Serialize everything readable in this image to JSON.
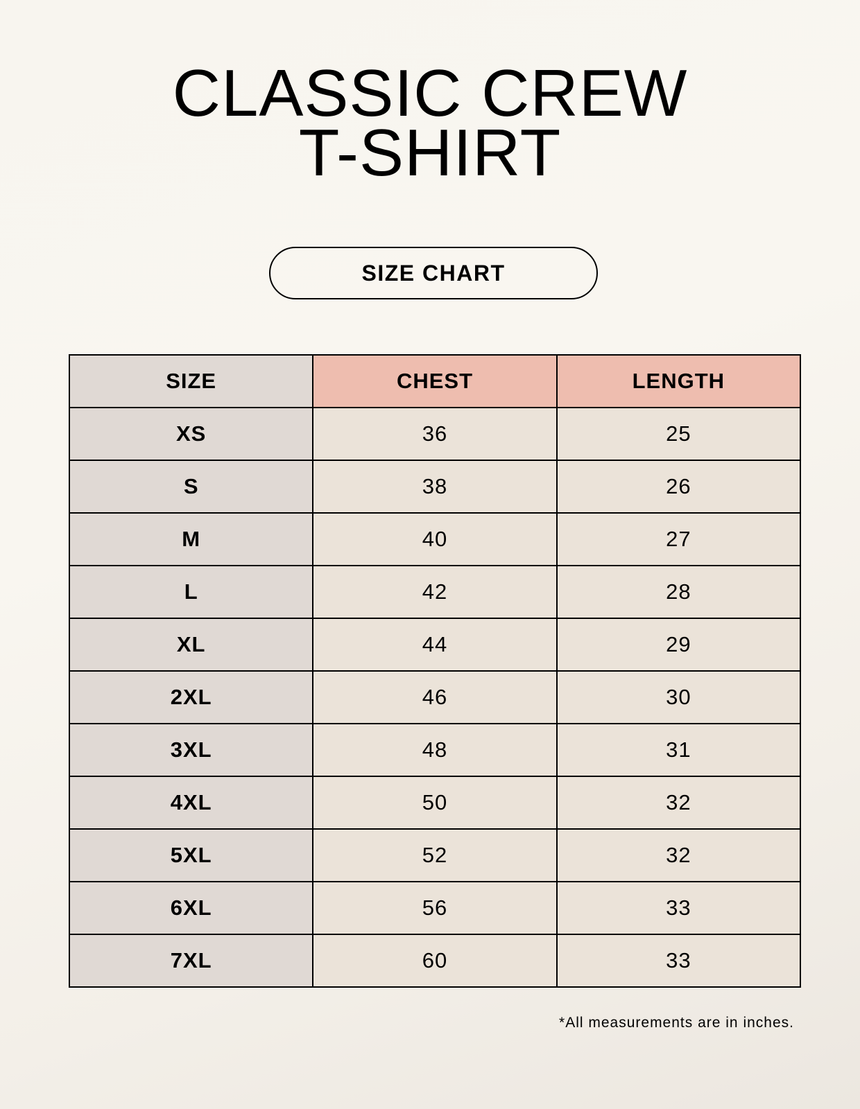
{
  "title": {
    "line1": "CLASSIC CREW",
    "line2": "T-SHIRT"
  },
  "subtitle": "SIZE CHART",
  "table": {
    "headers": [
      "SIZE",
      "CHEST",
      "LENGTH"
    ],
    "rows": [
      [
        "XS",
        "36",
        "25"
      ],
      [
        "S",
        "38",
        "26"
      ],
      [
        "M",
        "40",
        "27"
      ],
      [
        "L",
        "42",
        "28"
      ],
      [
        "XL",
        "44",
        "29"
      ],
      [
        "2XL",
        "46",
        "30"
      ],
      [
        "3XL",
        "48",
        "31"
      ],
      [
        "4XL",
        "50",
        "32"
      ],
      [
        "5XL",
        "52",
        "32"
      ],
      [
        "6XL",
        "56",
        "33"
      ],
      [
        "7XL",
        "60",
        "33"
      ]
    ]
  },
  "footnote": "*All measurements are in inches.",
  "colors": {
    "header_accent": "#eebdaf",
    "size_column": "#e0d9d4",
    "value_cells": "#ebe3d9"
  }
}
